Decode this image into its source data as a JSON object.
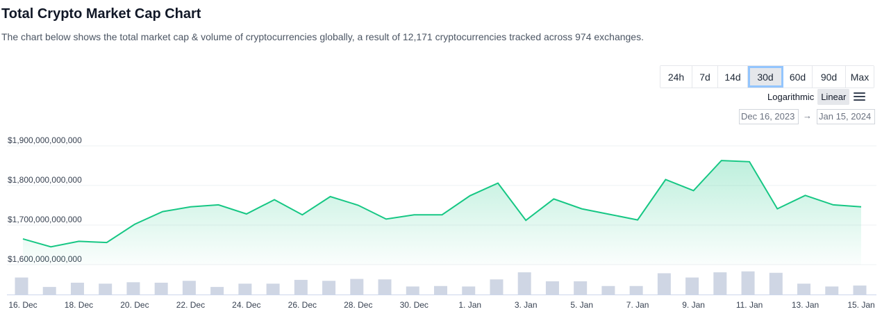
{
  "header": {
    "title": "Total Crypto Market Cap Chart",
    "description": "The chart below shows the total market cap & volume of cryptocurrencies globally, a result of 12,171 cryptocurrencies tracked across 974 exchanges."
  },
  "controls": {
    "ranges": [
      {
        "label": "24h",
        "active": false
      },
      {
        "label": "7d",
        "active": false
      },
      {
        "label": "14d",
        "active": false
      },
      {
        "label": "30d",
        "active": true
      },
      {
        "label": "60d",
        "active": false
      },
      {
        "label": "90d",
        "active": false
      },
      {
        "label": "Max",
        "active": false
      }
    ],
    "scale_logarithmic": "Logarithmic",
    "scale_linear": "Linear",
    "active_scale": "Linear",
    "menu_icon": "hamburger-menu-icon",
    "date_from": "Dec 16, 2023",
    "date_arrow": "→",
    "date_to": "Jan 15, 2024"
  },
  "colors": {
    "line": "#16c784",
    "area_fill": "#16c784",
    "volume_bar": "#cfd6e4",
    "active_outline": "#93c5fd"
  },
  "chart_data": {
    "type": "line",
    "title": "",
    "xlabel": "",
    "ylabel": "",
    "ylim": [
      1600000000000,
      1900000000000
    ],
    "y_ticks": [
      "$1,600,000,000,000",
      "$1,700,000,000,000",
      "$1,800,000,000,000",
      "$1,900,000,000,000"
    ],
    "x": [
      "Dec 16",
      "Dec 17",
      "Dec 18",
      "Dec 19",
      "Dec 20",
      "Dec 21",
      "Dec 22",
      "Dec 23",
      "Dec 24",
      "Dec 25",
      "Dec 26",
      "Dec 27",
      "Dec 28",
      "Dec 29",
      "Dec 30",
      "Dec 31",
      "Jan 1",
      "Jan 2",
      "Jan 3",
      "Jan 4",
      "Jan 5",
      "Jan 6",
      "Jan 7",
      "Jan 8",
      "Jan 9",
      "Jan 10",
      "Jan 11",
      "Jan 12",
      "Jan 13",
      "Jan 14",
      "Jan 15"
    ],
    "x_tick_labels": [
      {
        "index": 0,
        "label": "16. Dec"
      },
      {
        "index": 2,
        "label": "18. Dec"
      },
      {
        "index": 4,
        "label": "20. Dec"
      },
      {
        "index": 6,
        "label": "22. Dec"
      },
      {
        "index": 8,
        "label": "24. Dec"
      },
      {
        "index": 10,
        "label": "26. Dec"
      },
      {
        "index": 12,
        "label": "28. Dec"
      },
      {
        "index": 14,
        "label": "30. Dec"
      },
      {
        "index": 16,
        "label": "1. Jan"
      },
      {
        "index": 18,
        "label": "3. Jan"
      },
      {
        "index": 20,
        "label": "5. Jan"
      },
      {
        "index": 22,
        "label": "7. Jan"
      },
      {
        "index": 24,
        "label": "9. Jan"
      },
      {
        "index": 26,
        "label": "11. Jan"
      },
      {
        "index": 28,
        "label": "13. Jan"
      },
      {
        "index": 30,
        "label": "15. Jan"
      }
    ],
    "series": [
      {
        "values": [
          1665000000000,
          1645000000000,
          1659000000000,
          1656000000000,
          1702000000000,
          1734000000000,
          1746000000000,
          1751000000000,
          1728000000000,
          1764000000000,
          1726000000000,
          1772000000000,
          1750000000000,
          1715000000000,
          1726000000000,
          1726000000000,
          1774000000000,
          1806000000000,
          1712000000000,
          1766000000000,
          1741000000000,
          1727000000000,
          1713000000000,
          1815000000000,
          1787000000000,
          1863000000000,
          1860000000000,
          1741000000000,
          1775000000000,
          1751000000000,
          1746000000000
        ]
      }
    ],
    "volume_relative": [
      0.72,
      0.32,
      0.5,
      0.46,
      0.52,
      0.5,
      0.58,
      0.32,
      0.46,
      0.46,
      0.62,
      0.58,
      0.66,
      0.64,
      0.34,
      0.36,
      0.34,
      0.64,
      0.94,
      0.56,
      0.56,
      0.36,
      0.36,
      0.9,
      0.72,
      0.94,
      0.98,
      0.92,
      0.46,
      0.34,
      0.38
    ]
  }
}
